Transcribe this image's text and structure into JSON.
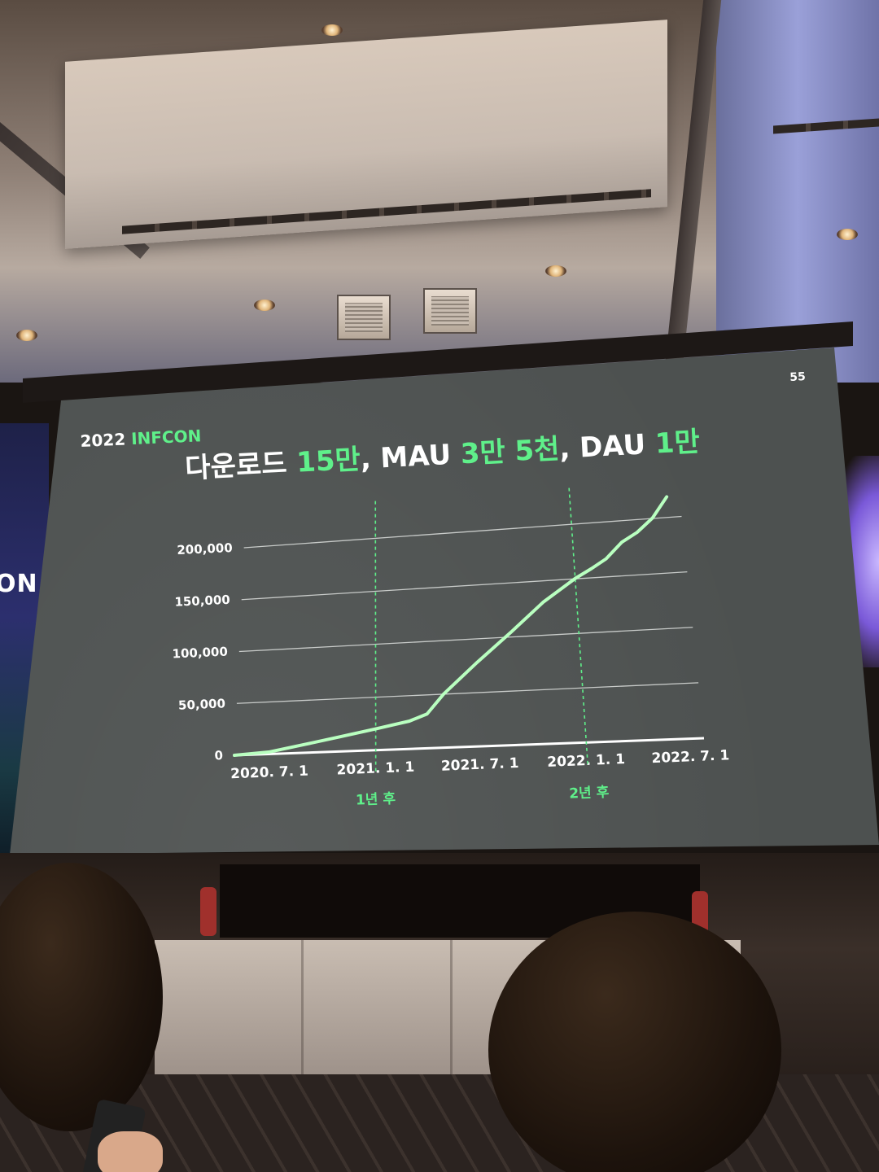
{
  "slide": {
    "brand_year": "2022",
    "brand_name": "INFCON",
    "slide_number": "55",
    "title": {
      "part1": "다운로드 ",
      "val1": "15만",
      "part2": ", MAU ",
      "val2": "3만 5천",
      "part3": ", DAU ",
      "val3": "1만"
    },
    "accent_color": "#5ff08a",
    "background_color": "#4d5150"
  },
  "side_banner": {
    "text": "ON"
  },
  "chart_data": {
    "type": "line",
    "x_ticks": [
      "2020. 7. 1",
      "2021. 1. 1",
      "2021. 7. 1",
      "2022. 1. 1",
      "2022. 7. 1"
    ],
    "y_ticks": [
      "0",
      "50,000",
      "100,000",
      "150,000",
      "200,000"
    ],
    "ylim": [
      0,
      200000
    ],
    "grid": true,
    "vertical_markers": [
      {
        "date": "2021-01-01",
        "label": "1년 후"
      },
      {
        "date": "2022-01-01",
        "label": "2년 후"
      }
    ],
    "series": [
      {
        "x": [
          "2020-05-01",
          "2020-07-01",
          "2020-09-01",
          "2020-11-01",
          "2021-01-01",
          "2021-03-01",
          "2021-04-01",
          "2021-05-01",
          "2021-07-01",
          "2021-09-01",
          "2021-11-01",
          "2022-01-01",
          "2022-02-01",
          "2022-03-01",
          "2022-04-01",
          "2022-05-01",
          "2022-06-01",
          "2022-07-01"
        ],
        "y": [
          0,
          2000,
          8000,
          14000,
          20000,
          26000,
          32000,
          50000,
          78000,
          104000,
          130000,
          150000,
          158000,
          166000,
          180000,
          188000,
          200000,
          218000
        ]
      }
    ]
  }
}
